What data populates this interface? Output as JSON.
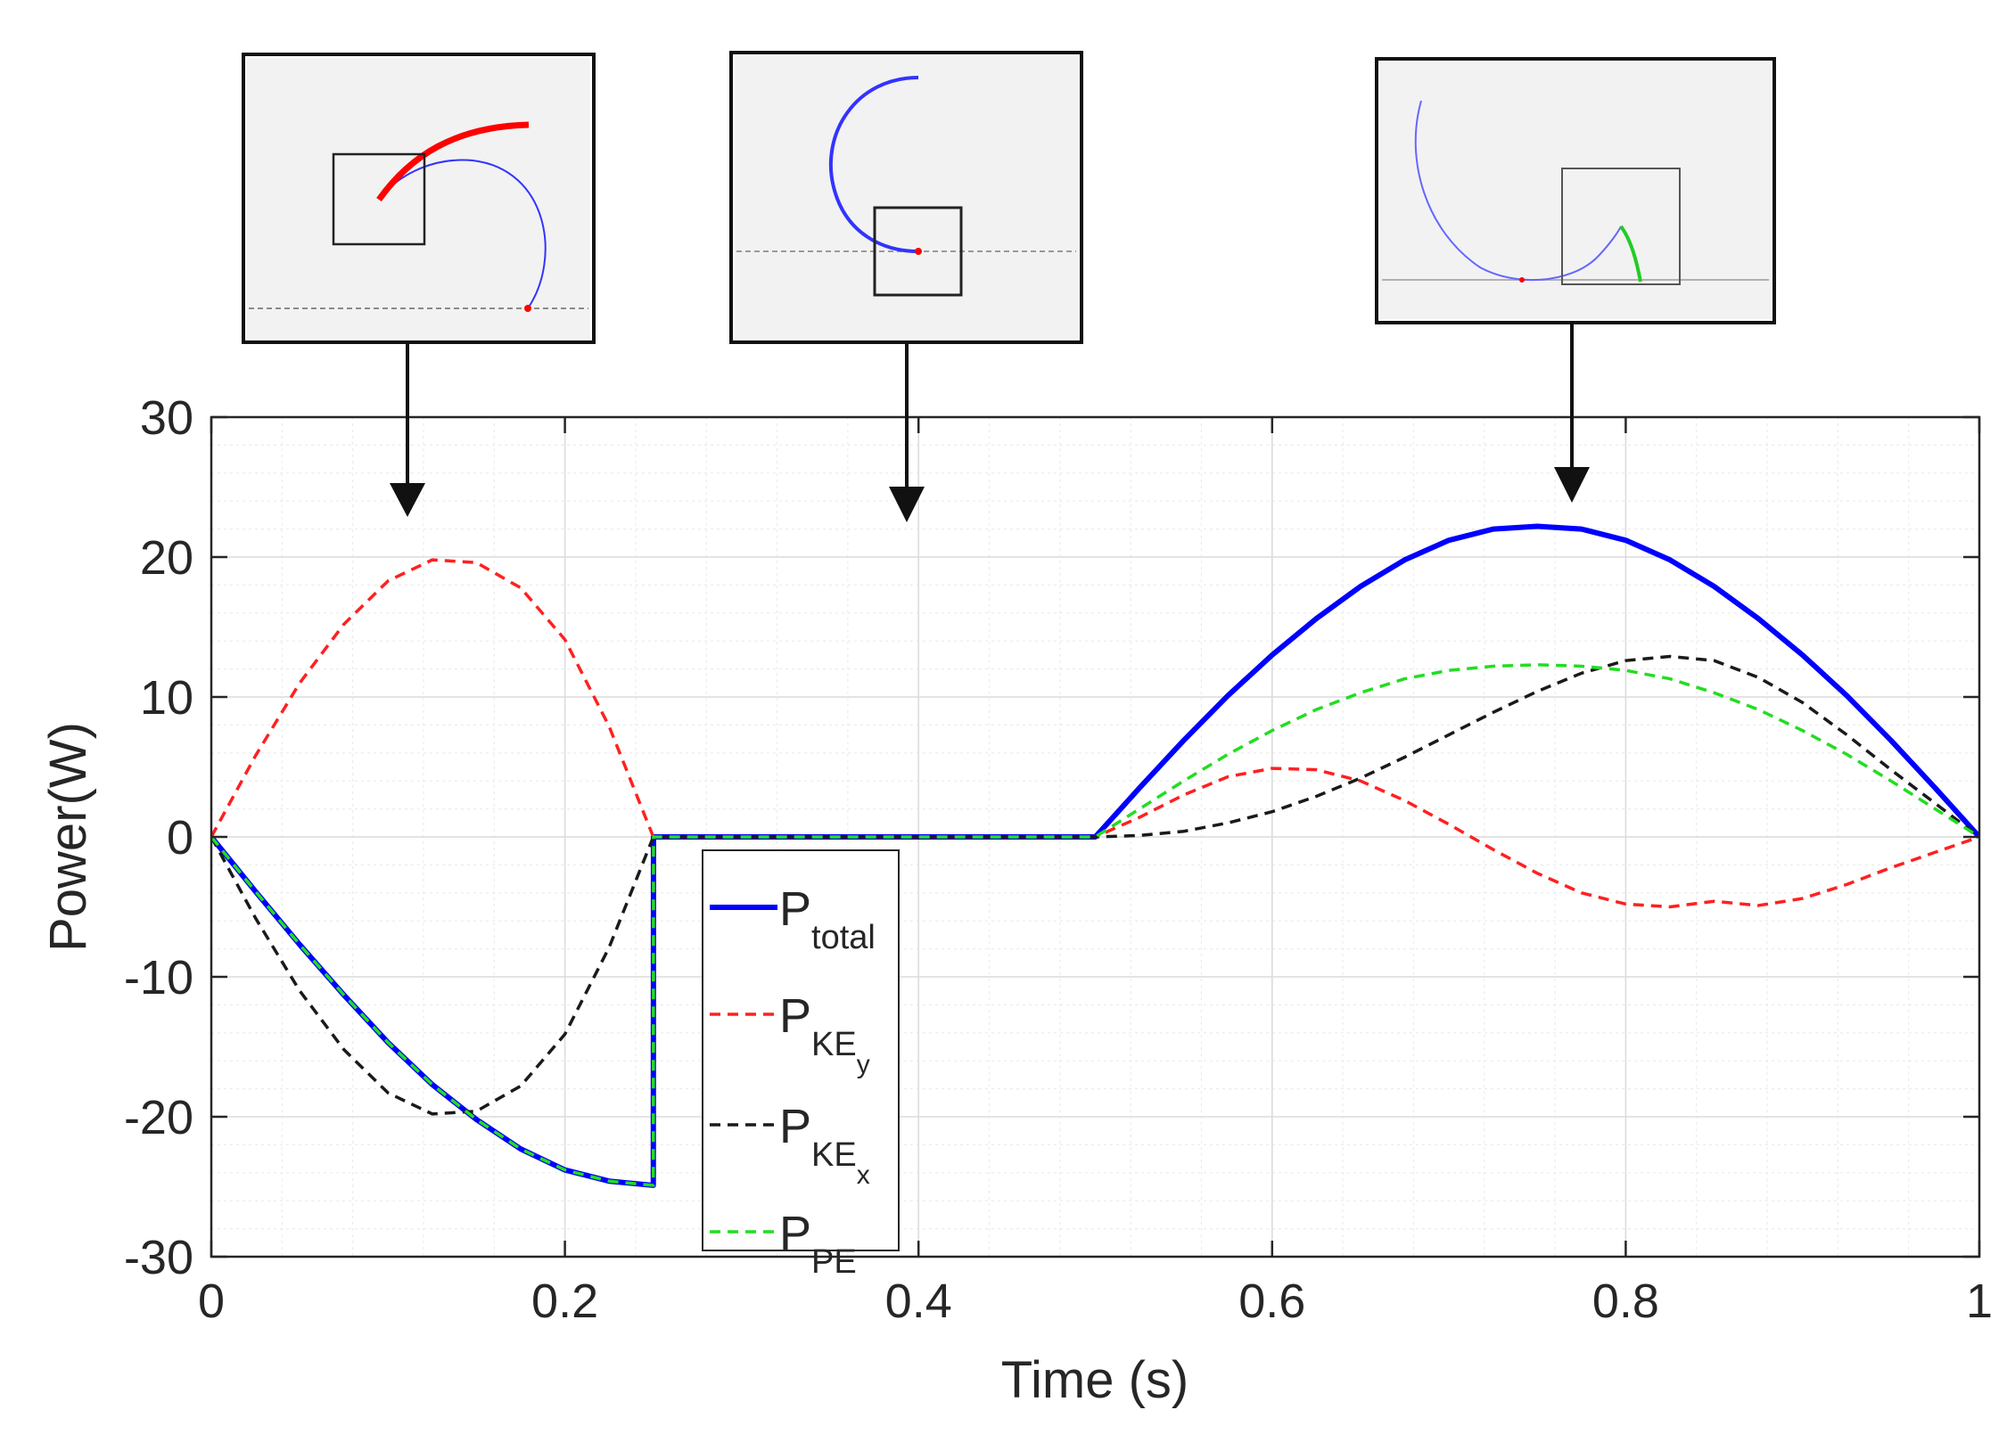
{
  "chart_data": {
    "type": "line",
    "title": "",
    "xlabel": "Time (s)",
    "ylabel": "Power(W)",
    "xlim": [
      0,
      1
    ],
    "ylim": [
      -30,
      30
    ],
    "grid": true,
    "minor_grid": true,
    "xticks": [
      0,
      0.2,
      0.4,
      0.6,
      0.8,
      1
    ],
    "xtick_labels": [
      "0",
      "0.2",
      "0.4",
      "0.6",
      "0.8",
      "1"
    ],
    "yticks": [
      30,
      20,
      10,
      0,
      -10,
      -20,
      -30
    ],
    "ytick_labels": [
      "30",
      "20",
      "10",
      "0",
      "-10",
      "-20",
      "-30"
    ],
    "legend_position": "center-left",
    "x": [
      0,
      0.025,
      0.05,
      0.075,
      0.1,
      0.125,
      0.15,
      0.175,
      0.2,
      0.225,
      0.25,
      0.2501,
      0.275,
      0.3,
      0.35,
      0.4,
      0.45,
      0.5,
      0.525,
      0.55,
      0.575,
      0.6,
      0.625,
      0.65,
      0.675,
      0.7,
      0.725,
      0.75,
      0.775,
      0.8,
      0.825,
      0.85,
      0.875,
      0.9,
      0.925,
      0.95,
      0.975,
      1.0
    ],
    "series": [
      {
        "name": "P_total",
        "label_main": "P",
        "label_sub": "total",
        "label_subsub": "",
        "color": "#0000ff",
        "style": "solid",
        "values": [
          0,
          -3.9,
          -7.7,
          -11.3,
          -14.7,
          -17.7,
          -20.2,
          -22.3,
          -23.8,
          -24.6,
          -24.9,
          0,
          0,
          0,
          0,
          0,
          0,
          0,
          3.5,
          6.9,
          10.1,
          13.0,
          15.6,
          17.9,
          19.8,
          21.2,
          22.0,
          22.2,
          22.0,
          21.2,
          19.8,
          17.9,
          15.6,
          13.0,
          10.1,
          6.9,
          3.5,
          0
        ]
      },
      {
        "name": "P_KEy",
        "label_main": "P",
        "label_sub": "KE",
        "label_subsub": "y",
        "color": "#ff2020",
        "style": "dashed",
        "values": [
          0,
          5.8,
          11.0,
          15.2,
          18.3,
          19.8,
          19.6,
          17.8,
          14.1,
          7.9,
          0,
          0,
          0,
          0,
          0,
          0,
          0,
          0,
          1.4,
          3.0,
          4.3,
          4.9,
          4.8,
          4.0,
          2.6,
          0.9,
          -0.9,
          -2.6,
          -4.0,
          -4.8,
          -5.0,
          -4.6,
          -4.9,
          -4.4,
          -3.4,
          -2.2,
          -1.1,
          0
        ]
      },
      {
        "name": "P_KEx",
        "label_main": "P",
        "label_sub": "KE",
        "label_subsub": "x",
        "color": "#1a1a1a",
        "style": "dashed",
        "values": [
          0,
          -5.8,
          -11.0,
          -15.2,
          -18.3,
          -19.8,
          -19.6,
          -17.8,
          -14.1,
          -7.9,
          0,
          0,
          0,
          0,
          0,
          0,
          0,
          0,
          0.1,
          0.4,
          1.0,
          1.8,
          2.9,
          4.2,
          5.7,
          7.3,
          8.9,
          10.4,
          11.7,
          12.6,
          12.9,
          12.6,
          11.4,
          9.6,
          7.3,
          4.8,
          2.4,
          0
        ]
      },
      {
        "name": "P_PE",
        "label_main": "P",
        "label_sub": "PE",
        "label_subsub": "",
        "color": "#22dd22",
        "style": "dashed",
        "values": [
          0,
          -3.9,
          -7.7,
          -11.3,
          -14.7,
          -17.7,
          -20.2,
          -22.3,
          -23.8,
          -24.6,
          -24.9,
          0,
          0,
          0,
          0,
          0,
          0,
          0,
          2.0,
          4.0,
          5.9,
          7.6,
          9.1,
          10.3,
          11.3,
          11.9,
          12.2,
          12.3,
          12.2,
          11.9,
          11.3,
          10.3,
          9.1,
          7.6,
          5.9,
          4.0,
          2.0,
          0
        ]
      }
    ],
    "annotations": [
      {
        "name": "inset-1",
        "points_to_x": 0.112,
        "description_colors": [
          "#ff0000",
          "#3333ff"
        ]
      },
      {
        "name": "inset-2",
        "points_to_x": 0.395,
        "description_colors": [
          "#3333ff"
        ]
      },
      {
        "name": "inset-3",
        "points_to_x": 0.77,
        "description_colors": [
          "#3333ff",
          "#22cc22"
        ]
      }
    ]
  }
}
